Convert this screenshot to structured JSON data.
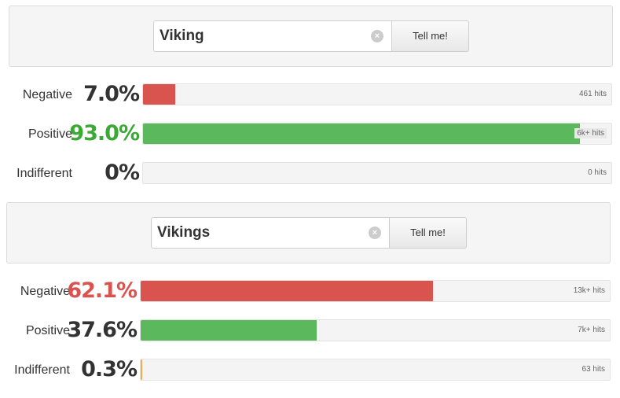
{
  "queries": [
    {
      "search": {
        "value": "Viking",
        "clear_icon": "×",
        "button_label": "Tell me!"
      },
      "rows": [
        {
          "label": "Negative",
          "percent": "7.0%",
          "fraction": 0.07,
          "hits": "461 hits",
          "color": "#d9534f"
        },
        {
          "label": "Positive",
          "percent": "93.0%",
          "fraction": 0.93,
          "hits": "6k+ hits",
          "color": "#5cb85c"
        },
        {
          "label": "Indifferent",
          "percent": "0%",
          "fraction": 0.0,
          "hits": "0 hits",
          "color": "#f0ad4e"
        }
      ]
    },
    {
      "search": {
        "value": "Vikings",
        "clear_icon": "×",
        "button_label": "Tell me!"
      },
      "rows": [
        {
          "label": "Negative",
          "percent": "62.1%",
          "fraction": 0.621,
          "hits": "13k+ hits",
          "color": "#d9534f"
        },
        {
          "label": "Positive",
          "percent": "37.6%",
          "fraction": 0.376,
          "hits": "7k+ hits",
          "color": "#5cb85c"
        },
        {
          "label": "Indifferent",
          "percent": "0.3%",
          "fraction": 0.003,
          "hits": "63 hits",
          "color": "#f0ad4e"
        }
      ]
    }
  ],
  "colors": {
    "negative_highlight": "#d9534f",
    "positive_highlight": "#3aaa35",
    "neutral_text": "#333333"
  }
}
